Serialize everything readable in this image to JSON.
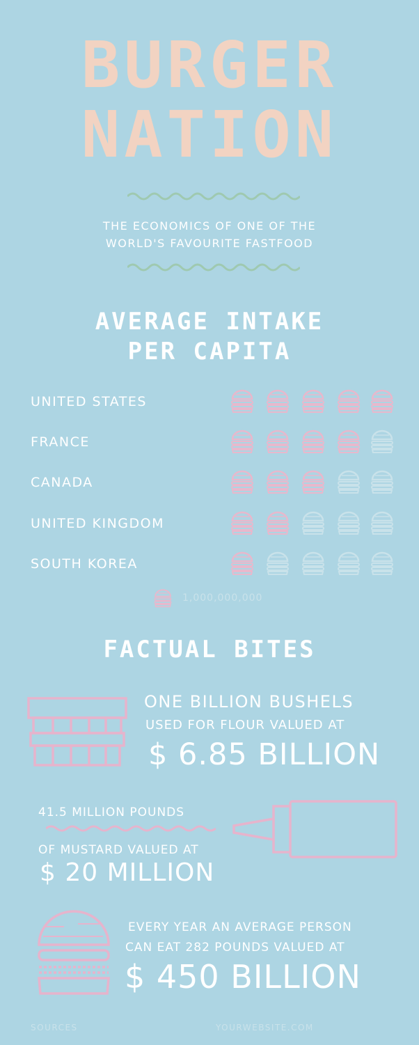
{
  "header": {
    "title_line1": "BURGER",
    "title_line2": "NATION",
    "subtitle_line1": "THE ECONOMICS OF ONE OF THE",
    "subtitle_line2": "WORLD'S FAVOURITE FASTFOOD"
  },
  "intake": {
    "heading_line1": "AVERAGE INTAKE",
    "heading_line2": "PER CAPITA",
    "rows": [
      {
        "country": "UNITED STATES",
        "filled": 5,
        "total": 5
      },
      {
        "country": "FRANCE",
        "filled": 4,
        "total": 5
      },
      {
        "country": "CANADA",
        "filled": 3,
        "total": 5
      },
      {
        "country": "UNITED KINGDOM",
        "filled": 2,
        "total": 5
      },
      {
        "country": "SOUTH KOREA",
        "filled": 1,
        "total": 5
      }
    ],
    "legend_value": "1,000,000,000"
  },
  "facts": {
    "heading": "FACTUAL BITES",
    "flour": {
      "line1": "ONE BILLION BUSHELS",
      "line2": "USED FOR FLOUR VALUED AT",
      "value": "$ 6.85 BILLION"
    },
    "mustard": {
      "line1": "41.5 MILLION POUNDS",
      "line2": "OF MUSTARD VALUED AT",
      "value": "$ 20 MILLION"
    },
    "person": {
      "line1": "EVERY YEAR AN AVERAGE PERSON",
      "line2": "CAN EAT 282 POUNDS VALUED AT",
      "value": "$ 450 BILLION"
    }
  },
  "footer": {
    "sources": "SOURCES",
    "website": "YOURWEBSITE.COM"
  },
  "colors": {
    "background": "#add5e3",
    "title": "#f2d3c2",
    "filled_burger": "#e8b8cc",
    "empty_burger": "#c9e2ea",
    "icon_pink": "#e6b4cc",
    "wave": "#9fc9b0"
  },
  "icons": [
    "burger-icon",
    "flour-sack-icon",
    "mustard-bottle-icon",
    "burger-outline-icon"
  ]
}
